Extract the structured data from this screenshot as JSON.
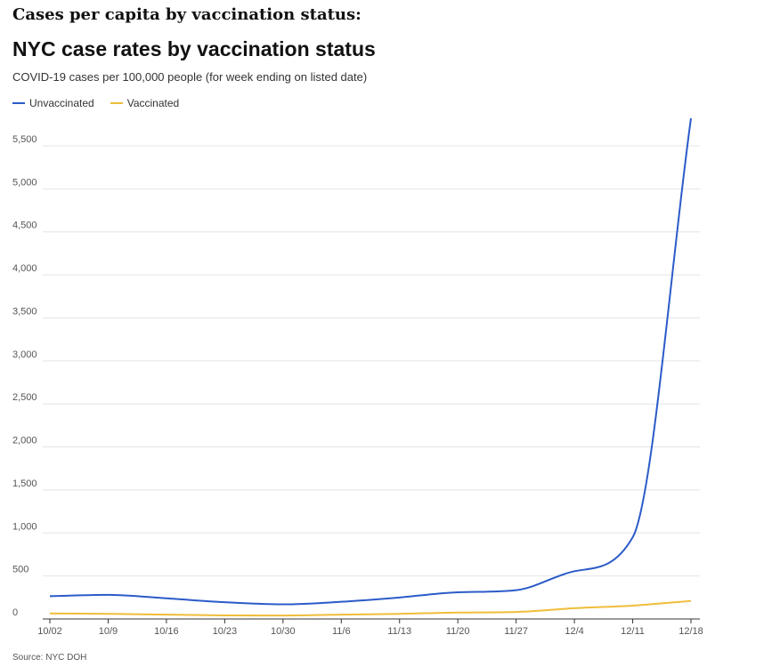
{
  "page": {
    "heading": "Cases per capita by vaccination status:",
    "source": "Source: NYC DOH"
  },
  "chart_data": {
    "type": "line",
    "title": "NYC case rates by vaccination status",
    "subtitle": "COVID-19 cases per 100,000 people (for week ending on listed date)",
    "xlabel": "",
    "ylabel": "",
    "categories": [
      "10/02",
      "10/9",
      "10/16",
      "10/23",
      "10/30",
      "11/6",
      "11/13",
      "11/20",
      "11/27",
      "12/4",
      "12/11",
      "12/18"
    ],
    "ylim": [
      0,
      5800
    ],
    "yticks": [
      0,
      500,
      1000,
      1500,
      2000,
      2500,
      3000,
      3500,
      4000,
      4500,
      5000,
      5500
    ],
    "ytick_labels": [
      "0",
      "500",
      "1,000",
      "1,500",
      "2,000",
      "2,500",
      "3,000",
      "3,500",
      "4,000",
      "4,500",
      "5,000",
      "5,500"
    ],
    "grid": true,
    "legend_position": "top-left",
    "series": [
      {
        "name": "Unvaccinated",
        "color": "#2c5bc8",
        "values": [
          265,
          280,
          240,
          195,
          170,
          200,
          250,
          310,
          335,
          555,
          950,
          5820
        ]
      },
      {
        "name": "Vaccinated",
        "color": "#f0bd3a",
        "values": [
          65,
          60,
          50,
          42,
          40,
          50,
          60,
          75,
          82,
          125,
          155,
          210
        ]
      }
    ]
  }
}
